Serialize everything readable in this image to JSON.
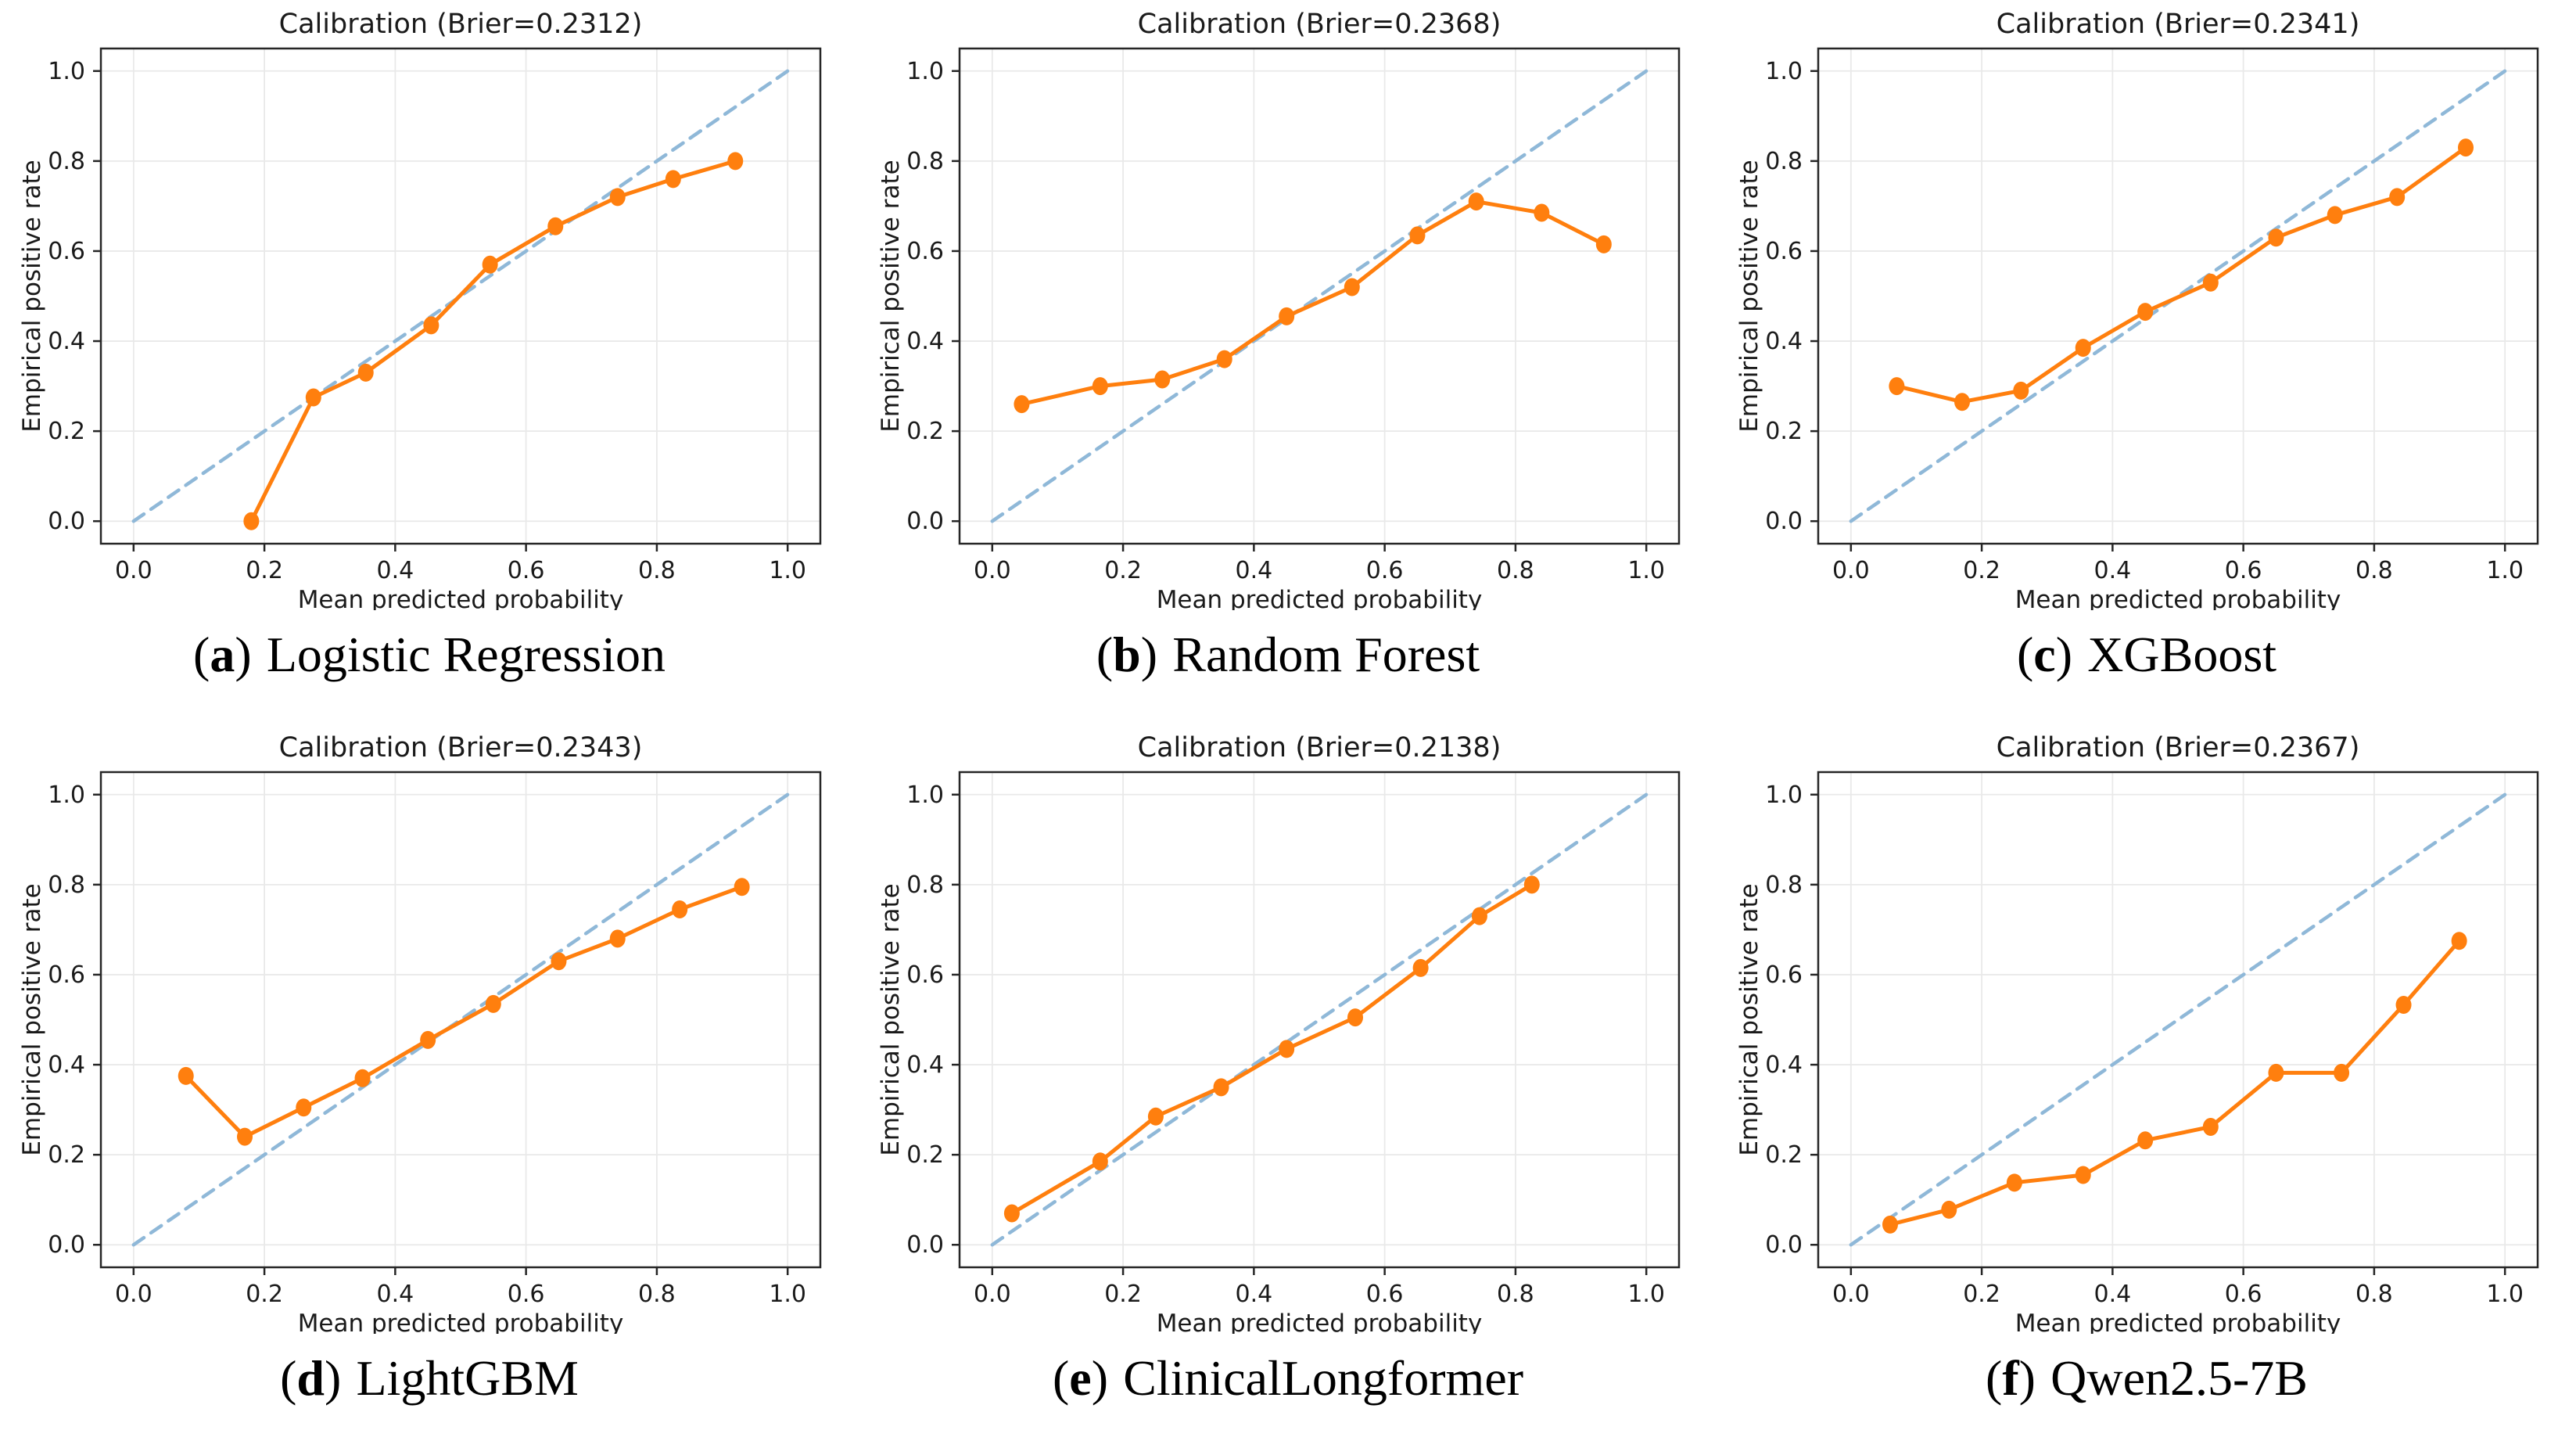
{
  "figure": {
    "background": "#ffffff",
    "grid_columns": 3,
    "grid_rows": 2
  },
  "colors": {
    "series_orange": "#ff7f0e",
    "diagonal_blue": "#8fb8d8",
    "grid": "#e9e9e9",
    "spine": "#262626",
    "text": "#1a1a1a"
  },
  "axes": {
    "xlabel": "Mean predicted probability",
    "ylabel": "Empirical positive rate",
    "xlim": [
      -0.05,
      1.05
    ],
    "ylim": [
      -0.05,
      1.05
    ],
    "tick_values": [
      0.0,
      0.2,
      0.4,
      0.6,
      0.8,
      1.0
    ],
    "tick_labels": [
      "0.0",
      "0.2",
      "0.4",
      "0.6",
      "0.8",
      "1.0"
    ],
    "grid": true,
    "legend": "none"
  },
  "chart_data": [
    {
      "type": "line",
      "panel": "a",
      "title": "Calibration (Brier=0.2312)",
      "brier": 0.2312,
      "caption": {
        "prefix": "(",
        "letter": "a",
        "suffix": ")",
        "name": "Logistic Regression"
      },
      "series": [
        {
          "name": "ideal-diagonal",
          "style": "dashed",
          "marker": false,
          "x": [
            0,
            1
          ],
          "y": [
            0,
            1
          ]
        },
        {
          "name": "calibration-curve",
          "style": "solid",
          "marker": true,
          "x": [
            0.18,
            0.275,
            0.355,
            0.455,
            0.545,
            0.645,
            0.74,
            0.825,
            0.92
          ],
          "y": [
            0.0,
            0.275,
            0.33,
            0.435,
            0.57,
            0.655,
            0.72,
            0.76,
            0.8
          ]
        }
      ]
    },
    {
      "type": "line",
      "panel": "b",
      "title": "Calibration (Brier=0.2368)",
      "brier": 0.2368,
      "caption": {
        "prefix": "(",
        "letter": "b",
        "suffix": ")",
        "name": "Random Forest"
      },
      "series": [
        {
          "name": "ideal-diagonal",
          "style": "dashed",
          "marker": false,
          "x": [
            0,
            1
          ],
          "y": [
            0,
            1
          ]
        },
        {
          "name": "calibration-curve",
          "style": "solid",
          "marker": true,
          "x": [
            0.045,
            0.165,
            0.26,
            0.355,
            0.45,
            0.55,
            0.65,
            0.74,
            0.84,
            0.935
          ],
          "y": [
            0.26,
            0.3,
            0.315,
            0.36,
            0.455,
            0.52,
            0.635,
            0.71,
            0.685,
            0.615
          ]
        }
      ]
    },
    {
      "type": "line",
      "panel": "c",
      "title": "Calibration (Brier=0.2341)",
      "brier": 0.2341,
      "caption": {
        "prefix": "(",
        "letter": "c",
        "suffix": ")",
        "name": "XGBoost"
      },
      "series": [
        {
          "name": "ideal-diagonal",
          "style": "dashed",
          "marker": false,
          "x": [
            0,
            1
          ],
          "y": [
            0,
            1
          ]
        },
        {
          "name": "calibration-curve",
          "style": "solid",
          "marker": true,
          "x": [
            0.07,
            0.17,
            0.26,
            0.355,
            0.45,
            0.55,
            0.65,
            0.74,
            0.835,
            0.94
          ],
          "y": [
            0.3,
            0.265,
            0.29,
            0.385,
            0.465,
            0.53,
            0.63,
            0.68,
            0.72,
            0.83
          ]
        }
      ]
    },
    {
      "type": "line",
      "panel": "d",
      "title": "Calibration (Brier=0.2343)",
      "brier": 0.2343,
      "caption": {
        "prefix": "(",
        "letter": "d",
        "suffix": ")",
        "name": "LightGBM"
      },
      "series": [
        {
          "name": "ideal-diagonal",
          "style": "dashed",
          "marker": false,
          "x": [
            0,
            1
          ],
          "y": [
            0,
            1
          ]
        },
        {
          "name": "calibration-curve",
          "style": "solid",
          "marker": true,
          "x": [
            0.08,
            0.17,
            0.26,
            0.35,
            0.45,
            0.55,
            0.65,
            0.74,
            0.835,
            0.93
          ],
          "y": [
            0.375,
            0.24,
            0.305,
            0.37,
            0.455,
            0.535,
            0.63,
            0.68,
            0.745,
            0.795
          ]
        }
      ]
    },
    {
      "type": "line",
      "panel": "e",
      "title": "Calibration (Brier=0.2138)",
      "brier": 0.2138,
      "caption": {
        "prefix": "(",
        "letter": "e",
        "suffix": ")",
        "name": "ClinicalLongformer"
      },
      "series": [
        {
          "name": "ideal-diagonal",
          "style": "dashed",
          "marker": false,
          "x": [
            0,
            1
          ],
          "y": [
            0,
            1
          ]
        },
        {
          "name": "calibration-curve",
          "style": "solid",
          "marker": true,
          "x": [
            0.03,
            0.165,
            0.25,
            0.35,
            0.45,
            0.555,
            0.655,
            0.745,
            0.825
          ],
          "y": [
            0.07,
            0.185,
            0.285,
            0.35,
            0.435,
            0.505,
            0.615,
            0.73,
            0.8
          ]
        }
      ]
    },
    {
      "type": "line",
      "panel": "f",
      "title": "Calibration (Brier=0.2367)",
      "brier": 0.2367,
      "caption": {
        "prefix": "(",
        "letter": "f",
        "suffix": ")",
        "name": "Qwen2.5-7B"
      },
      "series": [
        {
          "name": "ideal-diagonal",
          "style": "dashed",
          "marker": false,
          "x": [
            0,
            1
          ],
          "y": [
            0,
            1
          ]
        },
        {
          "name": "calibration-curve",
          "style": "solid",
          "marker": true,
          "x": [
            0.06,
            0.15,
            0.25,
            0.355,
            0.45,
            0.55,
            0.65,
            0.75,
            0.845,
            0.93
          ],
          "y": [
            0.045,
            0.078,
            0.138,
            0.155,
            0.232,
            0.262,
            0.382,
            0.382,
            0.533,
            0.675
          ]
        }
      ]
    }
  ]
}
